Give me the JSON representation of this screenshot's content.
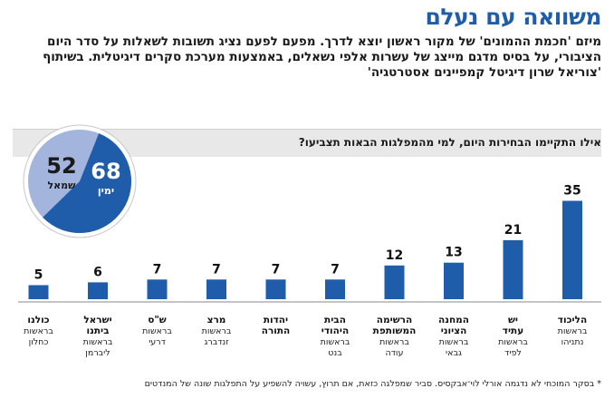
{
  "title": "משוואה עם נעלם",
  "subtitle": "מיזם 'חכמת ההמונים' של מקור ראשון יוצא לדרך. מפעם לפעם נציג תשובות לשאלות על סדר היום הציבורי, על בסיס מדגם מייצג של עשרות אלפי נשאלים, באמצעות מערכת סקרים דיגיטלית. בשיתוף 'צוריאל שרון דיגיטל קמפיינים אסטרטגיה'",
  "question": "אילו התקיימו הבחירות היום, למי מהמפלגות הבאות תצביעו?",
  "footnote": "* בסקר המוכחי לא נדגמה אורלי לוי־אבקסיס. סביר שמפלגה כזאת, אם תרוץ, עשויה להשפיע על התפלגות שונה של המנדטים",
  "colors": {
    "title": "#1f5ca9",
    "bar": "#1f5ca9",
    "right_bloc": "#1f5ca9",
    "left_bloc": "#a3b4dd",
    "question_band": "#e8e8e8"
  },
  "chart_data": [
    {
      "type": "bar",
      "categories": [
        "הליכוד",
        "יש עתיד",
        "המחנה הציוני",
        "הרשימה המשותפת",
        "הבית היהודי",
        "יהדות התורה",
        "מרצ",
        "ש\"ס",
        "ישראל ביתנו",
        "כולנו"
      ],
      "leaders": [
        "בראשות נתניהו",
        "בראשות לפיד",
        "בראשות גבאי",
        "בראשות עודה",
        "בראשות בנט",
        "",
        "בראשות זנדברג",
        "בראשות דרעי",
        "בראשות ליברמן",
        "בראשות כחלון"
      ],
      "values": [
        35,
        21,
        13,
        12,
        7,
        7,
        7,
        7,
        6,
        5
      ]
    },
    {
      "type": "pie",
      "labels": [
        "ימין",
        "שמאל"
      ],
      "values": [
        68,
        52
      ]
    }
  ]
}
